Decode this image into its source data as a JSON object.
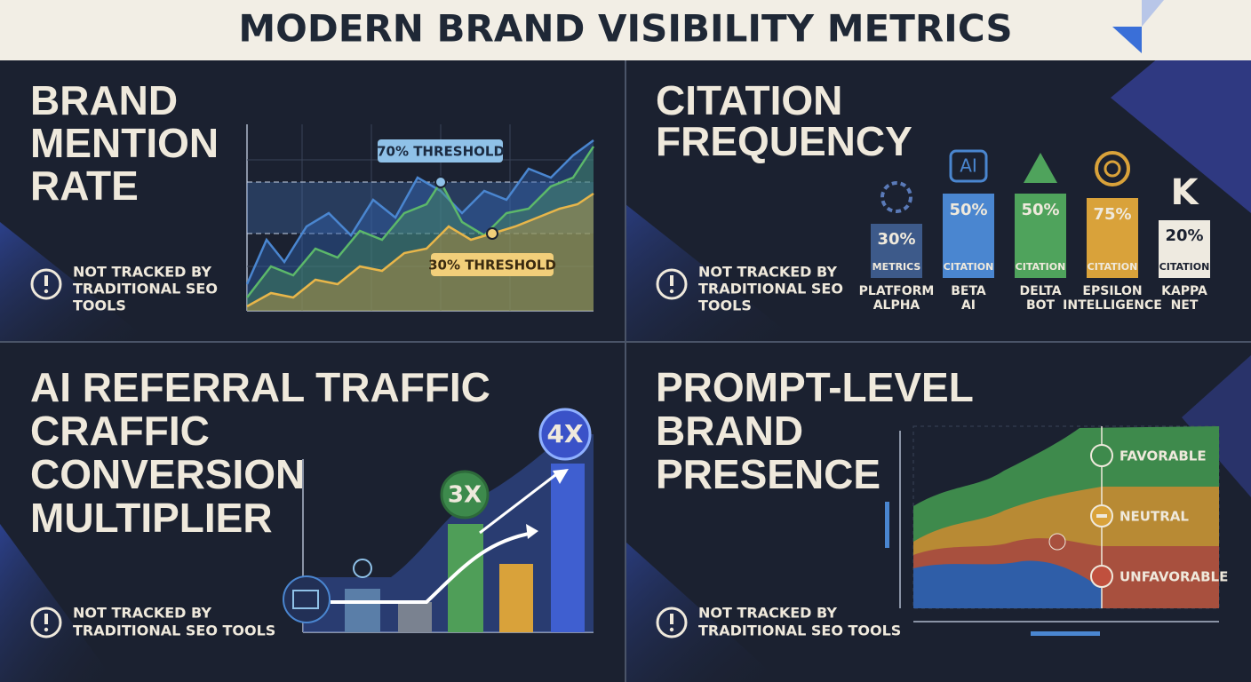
{
  "title": "MODERN BRAND VISIBILITY METRICS",
  "panels": [
    {
      "title_lines": [
        "BRAND",
        "MENTION",
        "RATE"
      ],
      "note_lines": [
        "NOT TRACKED BY",
        "TRADITIONAL SEO",
        "TOOLS"
      ],
      "annotations": [
        "70% THRESHOLD",
        "30% THRESHOLD"
      ]
    },
    {
      "title_lines": [
        "CITATION",
        "FREQUENCY"
      ],
      "note_lines": [
        "NOT TRACKED BY",
        "TRADITIONAL SEO",
        "TOOLS"
      ],
      "platforms": [
        {
          "percent": "30%",
          "sublabel": "METRICS",
          "name_lines": [
            "PLATFORM",
            "ALPHA"
          ]
        },
        {
          "icon": "AI",
          "percent": "50%",
          "sublabel": "CITATION",
          "name_lines": [
            "BETA",
            "AI"
          ]
        },
        {
          "percent": "50%",
          "sublabel": "CITATION",
          "name_lines": [
            "DELTA",
            "BOT"
          ]
        },
        {
          "percent": "75%",
          "sublabel": "CITATION",
          "name_lines": [
            "EPSILON",
            "INTELLIGENCE"
          ]
        },
        {
          "icon": "K",
          "percent": "20%",
          "sublabel": "CITATION",
          "name_lines": [
            "KAPPA",
            "NET"
          ]
        }
      ]
    },
    {
      "title_lines": [
        "AI REFERRAL TRAFFIC",
        "CRAFFIC",
        "CONVERSION",
        "MULTIPLIER"
      ],
      "note_lines": [
        "NOT TRACKED BY",
        "TRADITIONAL SEO TOOLS"
      ],
      "badges": [
        "3X",
        "4X"
      ]
    },
    {
      "title_lines": [
        "PROMPT-LEVEL",
        "BRAND",
        "PRESENCE"
      ],
      "note_lines": [
        "NOT TRACKED BY",
        "TRADITIONAL SEO TOOLS"
      ],
      "legend": [
        "FAVORABLE",
        "NEUTRAL",
        "UNFAVORABLE"
      ]
    }
  ]
}
